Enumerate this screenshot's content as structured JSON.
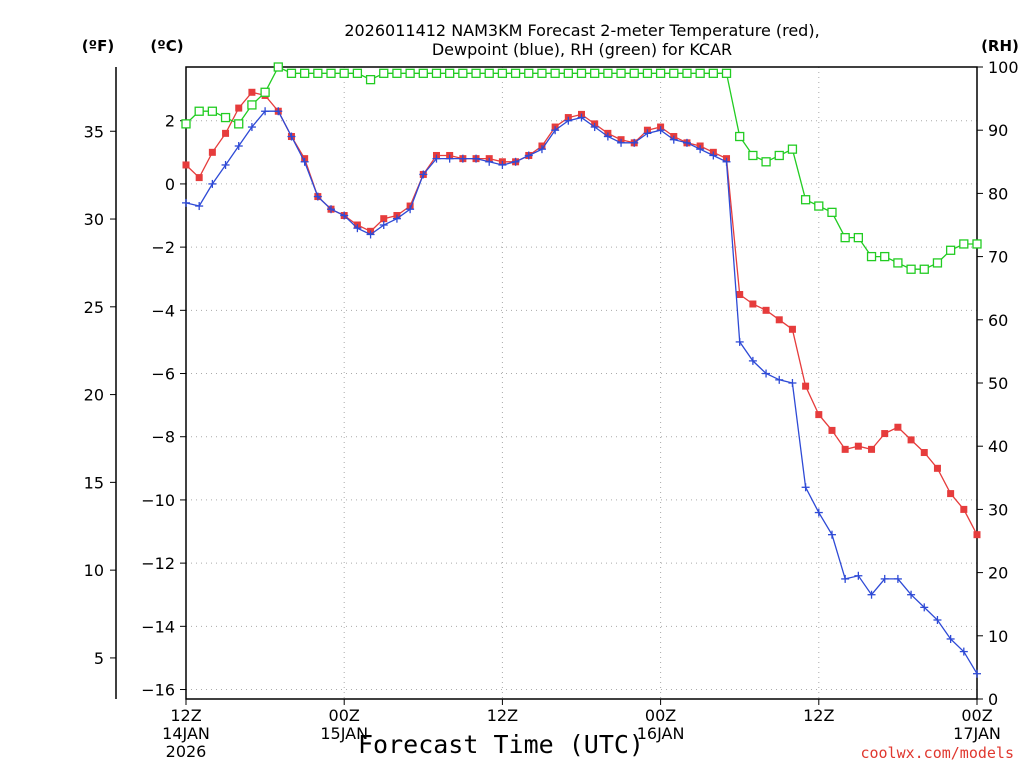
{
  "chart_data": {
    "type": "line",
    "title": "2026011412 NAM3KM Forecast 2-meter Temperature (red),",
    "subtitle": "Dewpoint (blue), RH (green) for KCAR",
    "xlabel": "Forecast Time (UTC)",
    "units": {
      "fahrenheit": "(ºF)",
      "celsius": "(ºC)",
      "rh": "(RH)"
    },
    "credit": "coolwx.com/models",
    "x_hours": [
      0,
      1,
      2,
      3,
      4,
      5,
      6,
      7,
      8,
      9,
      10,
      11,
      12,
      13,
      14,
      15,
      16,
      17,
      18,
      19,
      20,
      21,
      22,
      23,
      24,
      25,
      26,
      27,
      28,
      29,
      30,
      31,
      32,
      33,
      34,
      35,
      36,
      37,
      38,
      39,
      40,
      41,
      42,
      43,
      44,
      45,
      46,
      47,
      48,
      49,
      50,
      51,
      52,
      53,
      54,
      55,
      56,
      57,
      58,
      59,
      60
    ],
    "xlim": [
      0,
      60
    ],
    "x_ticks": [
      {
        "hour": 0,
        "line1": "12Z",
        "line2": "14JAN",
        "line3": "2026"
      },
      {
        "hour": 12,
        "line1": "00Z",
        "line2": "15JAN",
        "line3": ""
      },
      {
        "hour": 24,
        "line1": "12Z",
        "line2": "",
        "line3": ""
      },
      {
        "hour": 36,
        "line1": "00Z",
        "line2": "16JAN",
        "line3": ""
      },
      {
        "hour": 48,
        "line1": "12Z",
        "line2": "",
        "line3": ""
      },
      {
        "hour": 60,
        "line1": "00Z",
        "line2": "17JAN",
        "line3": ""
      }
    ],
    "celsius_axis": {
      "ylim": [
        -16.3,
        3.7
      ],
      "ticks": [
        2,
        0,
        -2,
        -4,
        -6,
        -8,
        -10,
        -12,
        -14,
        -16
      ],
      "tick_labels": [
        "2",
        "0",
        "−2",
        "−4",
        "−6",
        "−8",
        "−10",
        "−12",
        "−14",
        "−16"
      ]
    },
    "fahrenheit_axis": {
      "ticks": [
        35,
        30,
        25,
        20,
        15,
        10,
        5
      ]
    },
    "rh_axis": {
      "ylim": [
        0,
        100
      ],
      "ticks": [
        100,
        90,
        80,
        70,
        60,
        50,
        40,
        30,
        20,
        10,
        0
      ]
    },
    "series": [
      {
        "name": "Temperature",
        "axis": "celsius",
        "color": "#e63c3c",
        "marker": "filled-square",
        "values": [
          0.6,
          0.2,
          1.0,
          1.6,
          2.4,
          2.9,
          2.8,
          2.3,
          1.5,
          0.8,
          -0.4,
          -0.8,
          -1.0,
          -1.3,
          -1.5,
          -1.1,
          -1.0,
          -0.7,
          0.3,
          0.9,
          0.9,
          0.8,
          0.8,
          0.8,
          0.7,
          0.7,
          0.9,
          1.2,
          1.8,
          2.1,
          2.2,
          1.9,
          1.6,
          1.4,
          1.3,
          1.7,
          1.8,
          1.5,
          1.3,
          1.2,
          1.0,
          0.8,
          -3.5,
          -3.8,
          -4.0,
          -4.3,
          -4.6,
          -6.4,
          -7.3,
          -7.8,
          -8.4,
          -8.3,
          -8.4,
          -7.9,
          -7.7,
          -8.1,
          -8.5,
          -9.0,
          -9.8,
          -10.3,
          -11.1
        ]
      },
      {
        "name": "Dewpoint",
        "axis": "celsius",
        "color": "#2e4ad6",
        "marker": "plus",
        "values": [
          -0.6,
          -0.7,
          0.0,
          0.6,
          1.2,
          1.8,
          2.3,
          2.3,
          1.5,
          0.7,
          -0.4,
          -0.8,
          -1.0,
          -1.4,
          -1.6,
          -1.3,
          -1.1,
          -0.8,
          0.3,
          0.8,
          0.8,
          0.8,
          0.8,
          0.7,
          0.6,
          0.7,
          0.9,
          1.1,
          1.7,
          2.0,
          2.1,
          1.8,
          1.5,
          1.3,
          1.3,
          1.6,
          1.7,
          1.4,
          1.3,
          1.1,
          0.9,
          0.7,
          -5.0,
          -5.6,
          -6.0,
          -6.2,
          -6.3,
          -9.6,
          -10.4,
          -11.1,
          -12.5,
          -12.4,
          -13.0,
          -12.5,
          -12.5,
          -13.0,
          -13.4,
          -13.8,
          -14.4,
          -14.8,
          -15.5
        ]
      },
      {
        "name": "RH",
        "axis": "rh",
        "color": "#22cc22",
        "marker": "open-square",
        "values": [
          91,
          93,
          93,
          92,
          91,
          94,
          96,
          100,
          99,
          99,
          99,
          99,
          99,
          99,
          98,
          99,
          99,
          99,
          99,
          99,
          99,
          99,
          99,
          99,
          99,
          99,
          99,
          99,
          99,
          99,
          99,
          99,
          99,
          99,
          99,
          99,
          99,
          99,
          99,
          99,
          99,
          99,
          89,
          86,
          85,
          86,
          87,
          79,
          78,
          77,
          73,
          73,
          70,
          70,
          69,
          68,
          68,
          69,
          71,
          72,
          72
        ]
      }
    ]
  }
}
